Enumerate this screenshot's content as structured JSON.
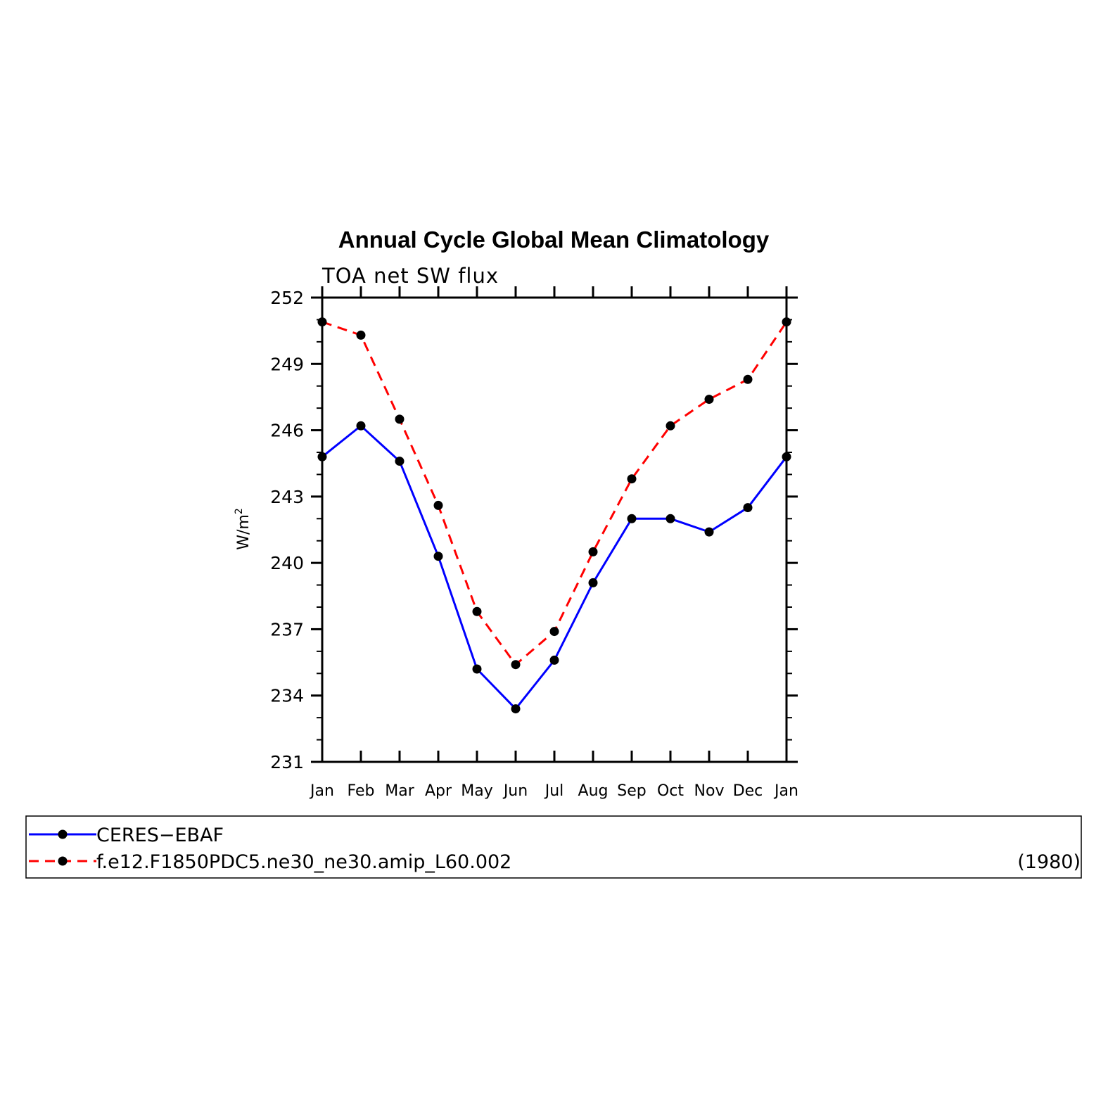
{
  "chart_data": {
    "type": "line",
    "title": "Annual Cycle Global Mean Climatology",
    "subtitle": "TOA net SW flux",
    "ylabel": "W/m",
    "ylabel_sup": "2",
    "ylim": [
      231,
      252
    ],
    "yticks": [
      "252",
      "249",
      "246",
      "243",
      "240",
      "237",
      "234",
      "231"
    ],
    "categories": [
      "Jan",
      "Feb",
      "Mar",
      "Apr",
      "May",
      "Jun",
      "Jul",
      "Aug",
      "Sep",
      "Oct",
      "Nov",
      "Dec",
      "Jan"
    ],
    "series": [
      {
        "name": "CERES−EBAF",
        "color": "#0000ff",
        "style": "solid",
        "marker": "filled-circle",
        "values": [
          244.8,
          246.2,
          244.6,
          240.3,
          235.2,
          233.4,
          235.6,
          239.1,
          242.0,
          242.0,
          241.4,
          242.5,
          244.8
        ]
      },
      {
        "name": "f.e12.F1850PDC5.ne30_ne30.amip_L60.002",
        "color": "#ff0000",
        "style": "dashed",
        "marker": "filled-circle",
        "values": [
          250.9,
          250.3,
          246.5,
          242.6,
          237.8,
          235.4,
          236.9,
          240.5,
          243.8,
          246.2,
          247.4,
          248.3,
          250.9
        ]
      }
    ],
    "legend": {
      "placement": "bottom",
      "entries": [
        "CERES−EBAF",
        "f.e12.F1850PDC5.ne30_ne30.amip_L60.002"
      ],
      "note": "(1980)"
    },
    "grid": false
  }
}
